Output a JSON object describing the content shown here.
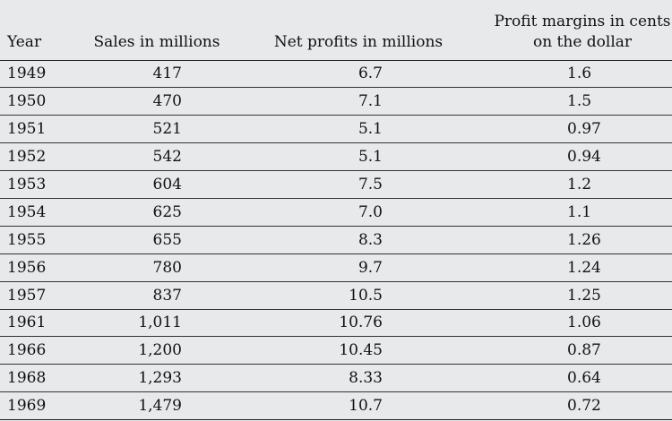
{
  "table": {
    "headers": {
      "year": "Year",
      "sales": "Sales in millions",
      "net_profits": "Net profits in millions",
      "margin_line1": "Profit margins in cents",
      "margin_line2": "on the dollar"
    },
    "rows": [
      {
        "year": "1949",
        "sales": "417",
        "net_profits": "6.7",
        "margin": "1.6"
      },
      {
        "year": "1950",
        "sales": "470",
        "net_profits": "7.1",
        "margin": "1.5"
      },
      {
        "year": "1951",
        "sales": "521",
        "net_profits": "5.1",
        "margin": "0.97"
      },
      {
        "year": "1952",
        "sales": "542",
        "net_profits": "5.1",
        "margin": "0.94"
      },
      {
        "year": "1953",
        "sales": "604",
        "net_profits": "7.5",
        "margin": "1.2"
      },
      {
        "year": "1954",
        "sales": "625",
        "net_profits": "7.0",
        "margin": "1.1"
      },
      {
        "year": "1955",
        "sales": "655",
        "net_profits": "8.3",
        "margin": "1.26"
      },
      {
        "year": "1956",
        "sales": "780",
        "net_profits": "9.7",
        "margin": "1.24"
      },
      {
        "year": "1957",
        "sales": "837",
        "net_profits": "10.5",
        "margin": "1.25"
      },
      {
        "year": "1961",
        "sales": "1,011",
        "net_profits": "10.76",
        "margin": "1.06"
      },
      {
        "year": "1966",
        "sales": "1,200",
        "net_profits": "10.45",
        "margin": "0.87"
      },
      {
        "year": "1968",
        "sales": "1,293",
        "net_profits": "8.33",
        "margin": "0.64"
      },
      {
        "year": "1969",
        "sales": "1,479",
        "net_profits": "10.7",
        "margin": "0.72"
      }
    ]
  }
}
